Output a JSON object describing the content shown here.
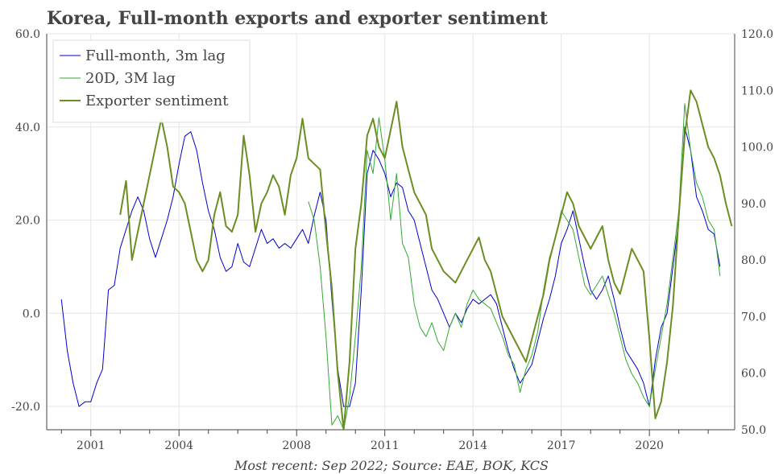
{
  "chart_data": {
    "type": "line",
    "title": "Korea, Full-month exports and exporter sentiment",
    "caption": "Most recent: Sep 2022; Source: EAE, BOK, KCS",
    "x_axis": {
      "range": [
        1999.5,
        2022.9
      ],
      "ticks": [
        2001,
        2004,
        2008,
        2011,
        2014,
        2017,
        2020
      ],
      "tick_labels": [
        "2001",
        "2004",
        "2008",
        "2011",
        "2014",
        "2017",
        "2020"
      ]
    },
    "y_left": {
      "range": [
        -25,
        60
      ],
      "ticks": [
        -20,
        0,
        20,
        40,
        60
      ],
      "tick_labels": [
        "-20.0",
        "0.0",
        "20.0",
        "40.0",
        "60.0"
      ]
    },
    "y_right": {
      "range": [
        50,
        120
      ],
      "ticks": [
        50,
        60,
        70,
        80,
        90,
        100,
        110,
        120
      ],
      "tick_labels": [
        "50.0",
        "60.0",
        "70.0",
        "80.0",
        "90.0",
        "100.0",
        "110.0",
        "120.0"
      ]
    },
    "grid": true,
    "legend_position": "top-left",
    "series": [
      {
        "name": "Full-month, 3m lag",
        "axis": "left",
        "color": "#0000cc",
        "points": [
          [
            2000.0,
            3
          ],
          [
            2000.2,
            -8
          ],
          [
            2000.4,
            -15
          ],
          [
            2000.6,
            -20
          ],
          [
            2000.8,
            -19
          ],
          [
            2001.0,
            -19
          ],
          [
            2001.2,
            -15
          ],
          [
            2001.4,
            -12
          ],
          [
            2001.6,
            5
          ],
          [
            2001.8,
            6
          ],
          [
            2002.0,
            14
          ],
          [
            2002.2,
            18
          ],
          [
            2002.4,
            22
          ],
          [
            2002.6,
            25
          ],
          [
            2002.8,
            22
          ],
          [
            2003.0,
            16
          ],
          [
            2003.2,
            12
          ],
          [
            2003.4,
            16
          ],
          [
            2003.6,
            20
          ],
          [
            2003.8,
            25
          ],
          [
            2004.0,
            32
          ],
          [
            2004.2,
            38
          ],
          [
            2004.4,
            39
          ],
          [
            2004.6,
            35
          ],
          [
            2004.8,
            28
          ],
          [
            2005.0,
            22
          ],
          [
            2005.2,
            18
          ],
          [
            2005.4,
            12
          ],
          [
            2005.6,
            9
          ],
          [
            2005.8,
            10
          ],
          [
            2006.0,
            15
          ],
          [
            2006.2,
            11
          ],
          [
            2006.4,
            10
          ],
          [
            2006.6,
            14
          ],
          [
            2006.8,
            18
          ],
          [
            2007.0,
            15
          ],
          [
            2007.2,
            16
          ],
          [
            2007.4,
            14
          ],
          [
            2007.6,
            15
          ],
          [
            2007.8,
            14
          ],
          [
            2008.0,
            16
          ],
          [
            2008.2,
            18
          ],
          [
            2008.4,
            15
          ],
          [
            2008.6,
            21
          ],
          [
            2008.8,
            26
          ],
          [
            2009.0,
            20
          ],
          [
            2009.2,
            3
          ],
          [
            2009.4,
            -12
          ],
          [
            2009.6,
            -20
          ],
          [
            2009.8,
            -20
          ],
          [
            2010.0,
            -15
          ],
          [
            2010.2,
            5
          ],
          [
            2010.4,
            30
          ],
          [
            2010.6,
            35
          ],
          [
            2010.8,
            33
          ],
          [
            2011.0,
            30
          ],
          [
            2011.2,
            25
          ],
          [
            2011.4,
            28
          ],
          [
            2011.6,
            27
          ],
          [
            2011.8,
            22
          ],
          [
            2012.0,
            20
          ],
          [
            2012.2,
            15
          ],
          [
            2012.4,
            10
          ],
          [
            2012.6,
            5
          ],
          [
            2012.8,
            3
          ],
          [
            2013.0,
            0
          ],
          [
            2013.2,
            -3
          ],
          [
            2013.4,
            0
          ],
          [
            2013.6,
            -2
          ],
          [
            2013.8,
            1
          ],
          [
            2014.0,
            3
          ],
          [
            2014.2,
            2
          ],
          [
            2014.4,
            3
          ],
          [
            2014.6,
            4
          ],
          [
            2014.8,
            2
          ],
          [
            2015.0,
            -3
          ],
          [
            2015.2,
            -8
          ],
          [
            2015.4,
            -12
          ],
          [
            2015.6,
            -15
          ],
          [
            2015.8,
            -13
          ],
          [
            2016.0,
            -11
          ],
          [
            2016.2,
            -6
          ],
          [
            2016.4,
            -1
          ],
          [
            2016.6,
            3
          ],
          [
            2016.8,
            8
          ],
          [
            2017.0,
            15
          ],
          [
            2017.2,
            18
          ],
          [
            2017.4,
            22
          ],
          [
            2017.6,
            16
          ],
          [
            2017.8,
            10
          ],
          [
            2018.0,
            5
          ],
          [
            2018.2,
            3
          ],
          [
            2018.4,
            5
          ],
          [
            2018.6,
            8
          ],
          [
            2018.8,
            3
          ],
          [
            2019.0,
            -3
          ],
          [
            2019.2,
            -8
          ],
          [
            2019.4,
            -10
          ],
          [
            2019.6,
            -12
          ],
          [
            2019.8,
            -15
          ],
          [
            2020.0,
            -20
          ],
          [
            2020.2,
            -10
          ],
          [
            2020.4,
            -3
          ],
          [
            2020.6,
            0
          ],
          [
            2020.8,
            10
          ],
          [
            2021.0,
            20
          ],
          [
            2021.2,
            40
          ],
          [
            2021.4,
            35
          ],
          [
            2021.6,
            25
          ],
          [
            2021.8,
            22
          ],
          [
            2022.0,
            18
          ],
          [
            2022.2,
            17
          ],
          [
            2022.4,
            10
          ]
        ]
      },
      {
        "name": "20D, 3M lag",
        "axis": "left",
        "color": "#33aa33",
        "points": [
          [
            2008.4,
            24
          ],
          [
            2008.6,
            20
          ],
          [
            2008.8,
            10
          ],
          [
            2009.0,
            -5
          ],
          [
            2009.2,
            -24
          ],
          [
            2009.4,
            -22
          ],
          [
            2009.6,
            -25
          ],
          [
            2009.8,
            -18
          ],
          [
            2010.0,
            -5
          ],
          [
            2010.2,
            10
          ],
          [
            2010.4,
            35
          ],
          [
            2010.6,
            30
          ],
          [
            2010.8,
            42
          ],
          [
            2011.0,
            33
          ],
          [
            2011.2,
            20
          ],
          [
            2011.4,
            30
          ],
          [
            2011.6,
            15
          ],
          [
            2011.8,
            12
          ],
          [
            2012.0,
            2
          ],
          [
            2012.2,
            -3
          ],
          [
            2012.4,
            -5
          ],
          [
            2012.6,
            -2
          ],
          [
            2012.8,
            -6
          ],
          [
            2013.0,
            -8
          ],
          [
            2013.2,
            -3
          ],
          [
            2013.4,
            0
          ],
          [
            2013.6,
            -3
          ],
          [
            2013.8,
            2
          ],
          [
            2014.0,
            5
          ],
          [
            2014.2,
            3
          ],
          [
            2014.4,
            2
          ],
          [
            2014.6,
            1
          ],
          [
            2014.8,
            -2
          ],
          [
            2015.0,
            -5
          ],
          [
            2015.2,
            -9
          ],
          [
            2015.4,
            -11
          ],
          [
            2015.6,
            -17
          ],
          [
            2015.8,
            -12
          ],
          [
            2016.0,
            -9
          ],
          [
            2016.2,
            -4
          ],
          [
            2016.4,
            5
          ],
          [
            2016.6,
            12
          ],
          [
            2016.8,
            16
          ],
          [
            2017.0,
            22
          ],
          [
            2017.2,
            20
          ],
          [
            2017.4,
            18
          ],
          [
            2017.6,
            12
          ],
          [
            2017.8,
            6
          ],
          [
            2018.0,
            4
          ],
          [
            2018.2,
            6
          ],
          [
            2018.4,
            8
          ],
          [
            2018.6,
            4
          ],
          [
            2018.8,
            0
          ],
          [
            2019.0,
            -5
          ],
          [
            2019.2,
            -10
          ],
          [
            2019.4,
            -13
          ],
          [
            2019.6,
            -15
          ],
          [
            2019.8,
            -18
          ],
          [
            2020.0,
            -20
          ],
          [
            2020.2,
            -12
          ],
          [
            2020.4,
            -5
          ],
          [
            2020.6,
            2
          ],
          [
            2020.8,
            12
          ],
          [
            2021.0,
            22
          ],
          [
            2021.2,
            45
          ],
          [
            2021.4,
            35
          ],
          [
            2021.6,
            28
          ],
          [
            2021.8,
            25
          ],
          [
            2022.0,
            20
          ],
          [
            2022.2,
            18
          ],
          [
            2022.4,
            8
          ]
        ]
      },
      {
        "name": "Exporter sentiment",
        "axis": "right",
        "color": "#6b8e23",
        "points": [
          [
            2002.0,
            88
          ],
          [
            2002.2,
            94
          ],
          [
            2002.4,
            80
          ],
          [
            2002.6,
            85
          ],
          [
            2002.8,
            90
          ],
          [
            2003.0,
            95
          ],
          [
            2003.2,
            100
          ],
          [
            2003.4,
            105
          ],
          [
            2003.6,
            100
          ],
          [
            2003.8,
            93
          ],
          [
            2004.0,
            92
          ],
          [
            2004.2,
            90
          ],
          [
            2004.4,
            85
          ],
          [
            2004.6,
            80
          ],
          [
            2004.8,
            78
          ],
          [
            2005.0,
            80
          ],
          [
            2005.2,
            88
          ],
          [
            2005.4,
            92
          ],
          [
            2005.6,
            86
          ],
          [
            2005.8,
            85
          ],
          [
            2006.0,
            88
          ],
          [
            2006.2,
            102
          ],
          [
            2006.4,
            95
          ],
          [
            2006.6,
            85
          ],
          [
            2006.8,
            90
          ],
          [
            2007.0,
            92
          ],
          [
            2007.2,
            95
          ],
          [
            2007.4,
            93
          ],
          [
            2007.6,
            88
          ],
          [
            2007.8,
            95
          ],
          [
            2008.0,
            98
          ],
          [
            2008.2,
            105
          ],
          [
            2008.4,
            98
          ],
          [
            2008.6,
            97
          ],
          [
            2008.8,
            96
          ],
          [
            2009.0,
            85
          ],
          [
            2009.2,
            75
          ],
          [
            2009.4,
            60
          ],
          [
            2009.6,
            50
          ],
          [
            2009.8,
            62
          ],
          [
            2010.0,
            82
          ],
          [
            2010.2,
            90
          ],
          [
            2010.4,
            102
          ],
          [
            2010.6,
            105
          ],
          [
            2010.8,
            100
          ],
          [
            2011.0,
            98
          ],
          [
            2011.2,
            103
          ],
          [
            2011.4,
            108
          ],
          [
            2011.6,
            100
          ],
          [
            2011.8,
            96
          ],
          [
            2012.0,
            92
          ],
          [
            2012.2,
            90
          ],
          [
            2012.4,
            88
          ],
          [
            2012.6,
            82
          ],
          [
            2012.8,
            80
          ],
          [
            2013.0,
            78
          ],
          [
            2013.2,
            77
          ],
          [
            2013.4,
            76
          ],
          [
            2013.6,
            78
          ],
          [
            2013.8,
            80
          ],
          [
            2014.0,
            82
          ],
          [
            2014.2,
            84
          ],
          [
            2014.4,
            80
          ],
          [
            2014.6,
            78
          ],
          [
            2014.8,
            74
          ],
          [
            2015.0,
            70
          ],
          [
            2015.2,
            68
          ],
          [
            2015.4,
            66
          ],
          [
            2015.6,
            64
          ],
          [
            2015.8,
            62
          ],
          [
            2016.0,
            66
          ],
          [
            2016.2,
            70
          ],
          [
            2016.4,
            74
          ],
          [
            2016.6,
            80
          ],
          [
            2016.8,
            84
          ],
          [
            2017.0,
            88
          ],
          [
            2017.2,
            92
          ],
          [
            2017.4,
            90
          ],
          [
            2017.6,
            86
          ],
          [
            2017.8,
            84
          ],
          [
            2018.0,
            82
          ],
          [
            2018.2,
            84
          ],
          [
            2018.4,
            86
          ],
          [
            2018.6,
            80
          ],
          [
            2018.8,
            76
          ],
          [
            2019.0,
            74
          ],
          [
            2019.2,
            78
          ],
          [
            2019.4,
            82
          ],
          [
            2019.6,
            80
          ],
          [
            2019.8,
            78
          ],
          [
            2020.0,
            66
          ],
          [
            2020.2,
            52
          ],
          [
            2020.4,
            55
          ],
          [
            2020.6,
            62
          ],
          [
            2020.8,
            72
          ],
          [
            2021.0,
            88
          ],
          [
            2021.2,
            102
          ],
          [
            2021.4,
            110
          ],
          [
            2021.6,
            108
          ],
          [
            2021.8,
            104
          ],
          [
            2022.0,
            100
          ],
          [
            2022.2,
            98
          ],
          [
            2022.4,
            95
          ],
          [
            2022.6,
            90
          ],
          [
            2022.8,
            86
          ]
        ]
      }
    ]
  }
}
